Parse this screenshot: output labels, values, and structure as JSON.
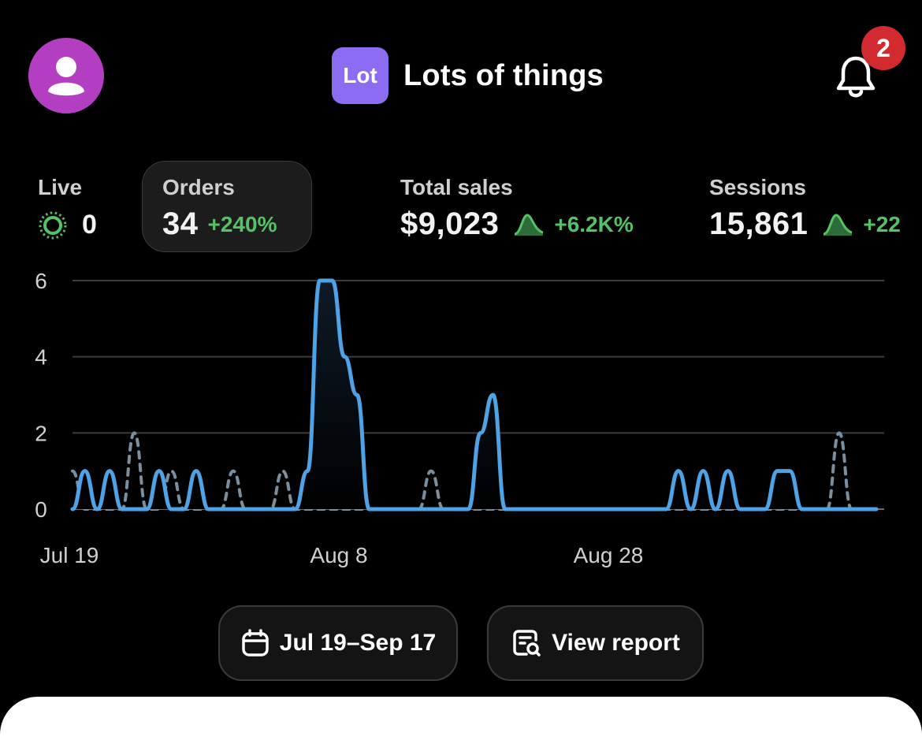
{
  "header": {
    "store_logo": "Lot",
    "store_name": "Lots of things",
    "notification_count": "2"
  },
  "metrics": {
    "live": {
      "label": "Live",
      "value": "0"
    },
    "orders": {
      "label": "Orders",
      "value": "34",
      "change": "+240%"
    },
    "total_sales": {
      "label": "Total sales",
      "value": "$9,023",
      "change": "+6.2K%"
    },
    "sessions": {
      "label": "Sessions",
      "value": "15,861",
      "change": "+22"
    }
  },
  "colors": {
    "accent_green": "#54c265",
    "current_series": "#4da3e6",
    "previous_series": "#7a8e9e",
    "avatar": "#b43ec2",
    "store_logo": "#8c6cf0",
    "badge": "#d12a2f"
  },
  "chart_data": {
    "type": "line",
    "ylim": [
      0,
      6
    ],
    "y_ticks": [
      "0",
      "2",
      "4",
      "6"
    ],
    "x_ticks": [
      "Jul 19",
      "Aug 8",
      "Aug 28"
    ],
    "grid": true,
    "series": [
      {
        "style": "solid",
        "values": [
          0,
          1,
          0,
          1,
          0,
          0,
          0,
          1,
          0,
          0,
          1,
          0,
          0,
          0,
          0,
          0,
          0,
          0,
          0,
          1,
          6,
          6,
          4,
          3,
          0,
          0,
          0,
          0,
          0,
          0,
          0,
          0,
          0,
          2,
          3,
          0,
          0,
          0,
          0,
          0,
          0,
          0,
          0,
          0,
          0,
          0,
          0,
          0,
          0,
          1,
          0,
          1,
          0,
          1,
          0,
          0,
          0,
          1,
          1,
          0,
          0,
          0,
          0,
          0,
          0,
          0
        ]
      },
      {
        "style": "dotted",
        "values": [
          1,
          0,
          0,
          0,
          0,
          2,
          0,
          0,
          1,
          0,
          0,
          0,
          0,
          1,
          0,
          0,
          0,
          1,
          0,
          0,
          0,
          0,
          0,
          0,
          0,
          0,
          0,
          0,
          0,
          1,
          0,
          0,
          0,
          0,
          0,
          0,
          0,
          0,
          0,
          0,
          0,
          0,
          0,
          0,
          0,
          0,
          0,
          0,
          0,
          0,
          0,
          0,
          0,
          0,
          0,
          0,
          0,
          0,
          0,
          0,
          0,
          0,
          2,
          0,
          0,
          0
        ]
      }
    ]
  },
  "actions": {
    "date_range": "Jul 19–Sep 17",
    "view_report": "View report"
  }
}
